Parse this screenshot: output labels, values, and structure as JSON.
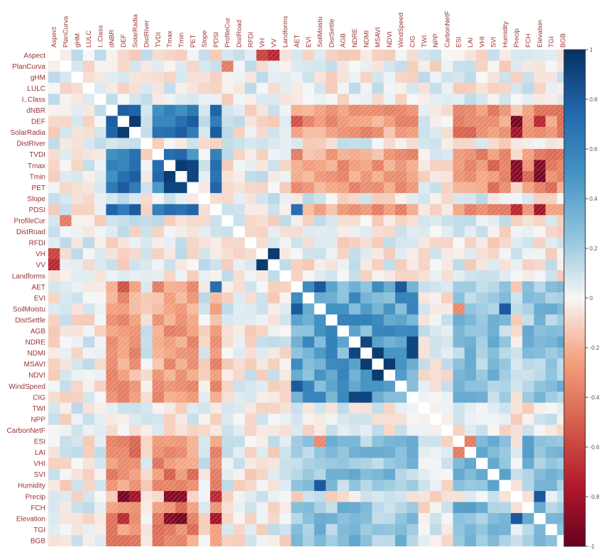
{
  "chart_data": {
    "type": "heatmap",
    "title": "",
    "variables": [
      "Aspect",
      "PlanCurva",
      "gHM",
      "LULC",
      "I..Class",
      "dNBR",
      "DEF",
      "SolarRadia",
      "DistRiver",
      "TVDI",
      "Tmax",
      "Tmin",
      "PET",
      "Slope",
      "PDSI",
      "ProfileCur",
      "DistRoad",
      "RFDI",
      "VH",
      "VV",
      "Landforms",
      "AET",
      "EVI",
      "SoilMoistu",
      "DistSettle",
      "AGB",
      "NDRE",
      "NDMI",
      "MSAVI",
      "NDVI",
      "WindSpeed",
      "CIG",
      "TWI",
      "NPP",
      "CarbonNetF",
      "ESI",
      "LAI",
      "VHI",
      "SVI",
      "Humidity",
      "Precip",
      "FCH",
      "Elevation",
      "TGI",
      "BGB"
    ],
    "groups": {
      "temperature": [
        "DEF",
        "SolarRadia",
        "Tmax",
        "Tmin",
        "PET",
        "PDSI",
        "dNBR",
        "TVDI"
      ],
      "vegetation": [
        "AET",
        "EVI",
        "SoilMoistu",
        "DistSettle",
        "AGB",
        "NDRE",
        "NDMI",
        "MSAVI",
        "NDVI",
        "WindSpeed",
        "CIG"
      ],
      "productivity": [
        "ESI",
        "LAI",
        "VHI",
        "SVI",
        "Humidity",
        "FCH",
        "Elevation",
        "TGI",
        "BGB"
      ],
      "radar": [
        "VH",
        "VV"
      ]
    },
    "highlighted_correlations": [
      {
        "a": "DEF",
        "b": "SolarRadia",
        "value": 0.95
      },
      {
        "a": "Tmax",
        "b": "Tmin",
        "value": 0.95
      },
      {
        "a": "Tmax",
        "b": "PET",
        "value": 0.9
      },
      {
        "a": "Tmin",
        "b": "PET",
        "value": 0.9
      },
      {
        "a": "VH",
        "b": "VV",
        "value": 0.95
      },
      {
        "a": "NDRE",
        "b": "NDMI",
        "value": 0.9
      },
      {
        "a": "NDMI",
        "b": "MSAVI",
        "value": 0.95
      },
      {
        "a": "MSAVI",
        "b": "NDVI",
        "value": 0.95
      },
      {
        "a": "NDRE",
        "b": "CIG",
        "value": 0.9
      },
      {
        "a": "NDMI",
        "b": "CIG",
        "value": 0.9
      },
      {
        "a": "AET",
        "b": "SoilMoistu",
        "value": 0.8
      },
      {
        "a": "Humidity",
        "b": "SoilMoistu",
        "value": 0.8
      },
      {
        "a": "Precip",
        "b": "DEF",
        "value": -0.95
      },
      {
        "a": "Precip",
        "b": "Tmax",
        "value": -0.9
      },
      {
        "a": "Precip",
        "b": "Tmin",
        "value": -0.9
      },
      {
        "a": "Elevation",
        "b": "Tmax",
        "value": -0.9
      },
      {
        "a": "Elevation",
        "b": "Tmin",
        "value": -0.95
      },
      {
        "a": "Elevation",
        "b": "DEF",
        "value": -0.7
      },
      {
        "a": "Precip",
        "b": "SolarRadia",
        "value": -0.8
      },
      {
        "a": "Precip",
        "b": "PDSI",
        "value": -0.7
      },
      {
        "a": "Elevation",
        "b": "PDSI",
        "value": -0.8
      },
      {
        "a": "Elevation",
        "b": "Precip",
        "value": 0.8
      },
      {
        "a": "Aspect",
        "b": "VV",
        "value": -0.7
      },
      {
        "a": "Aspect",
        "b": "VH",
        "value": -0.6
      },
      {
        "a": "PlanCurva",
        "b": "ProfileCur",
        "value": -0.4
      },
      {
        "a": "AET",
        "b": "DEF",
        "value": -0.55
      },
      {
        "a": "LAI",
        "b": "ESI",
        "value": -0.4
      },
      {
        "a": "ESI",
        "b": "SoilMoistu",
        "value": -0.35
      },
      {
        "a": "WindSpeed",
        "b": "AET",
        "value": 0.8
      },
      {
        "a": "PDSI",
        "b": "AET",
        "value": 0.7
      }
    ],
    "colorbar": {
      "min": -1,
      "max": 1,
      "low_color": "#67001f",
      "mid_color": "#f7f7f7",
      "high_color": "#053061"
    },
    "colorbar_ticks": [
      "1",
      "0.8",
      "0.6",
      "0.4",
      "0.2",
      "0",
      "-0.2",
      "-0.4",
      "-0.6",
      "-0.8",
      "-1"
    ]
  }
}
